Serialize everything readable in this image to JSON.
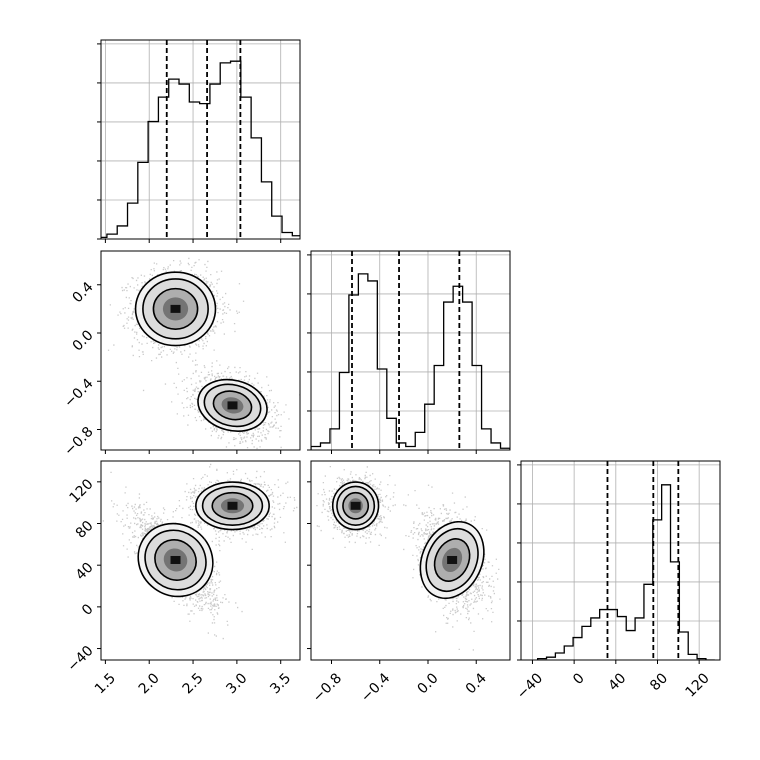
{
  "chart_data": {
    "type": "corner",
    "colors": {
      "points": "#8a8a8a",
      "grid": "#b0b0b0",
      "line": "#000000"
    },
    "grid": true,
    "params": [
      {
        "axis_range": [
          1.45,
          3.72
        ],
        "ticks": [
          "1.5",
          "2.0",
          "2.5",
          "3.0",
          "3.5"
        ],
        "tick_values": [
          1.5,
          2.0,
          2.5,
          3.0,
          3.5
        ],
        "quantiles": [
          2.2,
          2.66,
          3.04
        ],
        "hist_bins": [
          1.4,
          3.75
        ],
        "hist_counts": [
          1,
          3,
          8,
          22,
          47,
          72,
          87,
          98,
          95,
          84,
          83,
          95,
          108,
          109,
          87,
          62,
          35,
          14,
          4,
          2
        ],
        "hist_ymax": 122,
        "blobs": [
          {
            "mean": [
              2.3,
              0.2
            ],
            "sd": [
              0.24,
              0.16
            ],
            "rho": 0.0,
            "n": 1700
          },
          {
            "mean": [
              2.95,
              -0.6
            ],
            "sd": [
              0.21,
              0.12
            ],
            "rho": -0.35,
            "n": 1700
          }
        ]
      },
      {
        "axis_range": [
          -0.97,
          0.68
        ],
        "ticks": [
          "-0.8",
          "-0.4",
          "0.0",
          "0.4"
        ],
        "tick_values": [
          -0.8,
          -0.4,
          0.0,
          0.4
        ],
        "quantiles": [
          -0.63,
          -0.24,
          0.26
        ],
        "hist_bins": [
          -0.97,
          0.68
        ],
        "hist_counts": [
          2,
          4,
          12,
          44,
          88,
          100,
          96,
          46,
          18,
          4,
          2,
          10,
          26,
          48,
          84,
          93,
          84,
          48,
          12,
          4,
          1
        ],
        "hist_ymax": 113,
        "blobs": [
          {
            "mean": [
              -0.6,
              97
            ],
            "sd": [
              0.1,
              12
            ],
            "rho": 0.0,
            "n": 1700
          },
          {
            "mean": [
              0.2,
              45
            ],
            "sd": [
              0.13,
              22
            ],
            "rho": -0.35,
            "n": 1700
          }
        ]
      },
      {
        "axis_range": [
          -51,
          140
        ],
        "ticks": [
          "-40",
          "0",
          "40",
          "80",
          "120"
        ],
        "tick_values": [
          -40,
          0,
          40,
          80,
          120
        ],
        "y_ticks": [
          "-40",
          "0",
          "40",
          "80",
          "120"
        ],
        "quantiles": [
          32,
          76,
          100
        ],
        "hist_bins": [
          -35,
          135
        ],
        "hist_counts": [
          1,
          2,
          5,
          10,
          16,
          24,
          30,
          36,
          36,
          31,
          21,
          30,
          54,
          100,
          125,
          70,
          20,
          4,
          1,
          0
        ],
        "hist_ymax": 142,
        "blobs": [
          {
            "mean": [
              2.3,
              45
            ],
            "sd": [
              0.23,
              22
            ],
            "rho": -0.75,
            "n": 1700
          },
          {
            "mean": [
              2.95,
              97
            ],
            "sd": [
              0.22,
              12
            ],
            "rho": 0.0,
            "n": 1700
          }
        ]
      }
    ]
  }
}
